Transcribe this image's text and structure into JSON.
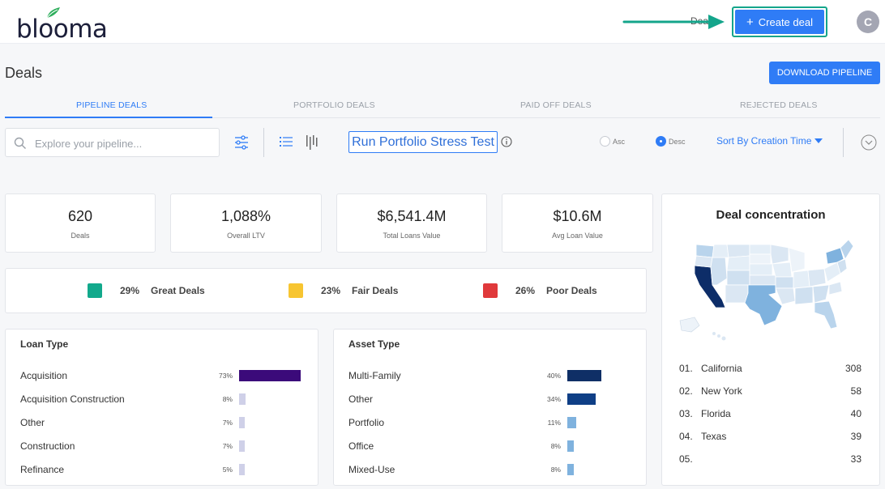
{
  "brand": {
    "logo_text": "blooma"
  },
  "header": {
    "partial_label": "Deal",
    "create_deal_label": "Create deal",
    "avatar_initial": "C"
  },
  "page": {
    "title": "Deals",
    "download_label": "DOWNLOAD PIPELINE"
  },
  "tabs": [
    "PIPELINE DEALS",
    "PORTFOLIO DEALS",
    "PAID OFF DEALS",
    "REJECTED DEALS"
  ],
  "toolbar": {
    "search_placeholder": "Explore your pipeline...",
    "stress_test_label": "Run Portfolio Stress Test",
    "asc_label": "Asc",
    "desc_label": "Desc",
    "sort_label": "Sort By Creation Time",
    "selected_order": "Desc"
  },
  "kpis": [
    {
      "value": "620",
      "label": "Deals"
    },
    {
      "value": "1,088%",
      "label": "Overall LTV"
    },
    {
      "value": "$6,541.4M",
      "label": "Total Loans Value"
    },
    {
      "value": "$10.6M",
      "label": "Avg Loan Value"
    }
  ],
  "quality": [
    {
      "pct": "29%",
      "label": "Great Deals",
      "color": "#12a98c"
    },
    {
      "pct": "23%",
      "label": "Fair Deals",
      "color": "#f7c531"
    },
    {
      "pct": "26%",
      "label": "Poor Deals",
      "color": "#e0393b"
    }
  ],
  "loan_type": {
    "title": "Loan Type",
    "rows": [
      {
        "label": "Acquisition",
        "pct": "73%",
        "value": 73,
        "color": "#3b0a7a"
      },
      {
        "label": "Acquisition Construction",
        "pct": "8%",
        "value": 8,
        "color": "#cfd0e8"
      },
      {
        "label": "Other",
        "pct": "7%",
        "value": 7,
        "color": "#cfd0e8"
      },
      {
        "label": "Construction",
        "pct": "7%",
        "value": 7,
        "color": "#cfd0e8"
      },
      {
        "label": "Refinance",
        "pct": "5%",
        "value": 5,
        "color": "#cfd0e8"
      }
    ]
  },
  "asset_type": {
    "title": "Asset Type",
    "rows": [
      {
        "label": "Multi-Family",
        "pct": "40%",
        "value": 40,
        "color": "#0f2f66"
      },
      {
        "label": "Other",
        "pct": "34%",
        "value": 34,
        "color": "#0f3f86"
      },
      {
        "label": "Portfolio",
        "pct": "11%",
        "value": 11,
        "color": "#7fb2de"
      },
      {
        "label": "Office",
        "pct": "8%",
        "value": 8,
        "color": "#7fb2de"
      },
      {
        "label": "Mixed-Use",
        "pct": "8%",
        "value": 8,
        "color": "#7fb2de"
      }
    ]
  },
  "concentration": {
    "title": "Deal concentration",
    "rows": [
      {
        "rank": "01.",
        "state": "California",
        "count": "308"
      },
      {
        "rank": "02.",
        "state": "New York",
        "count": "58"
      },
      {
        "rank": "03.",
        "state": "Florida",
        "count": "40"
      },
      {
        "rank": "04.",
        "state": "Texas",
        "count": "39"
      },
      {
        "rank": "05.",
        "state": "",
        "count": "33"
      }
    ]
  }
}
